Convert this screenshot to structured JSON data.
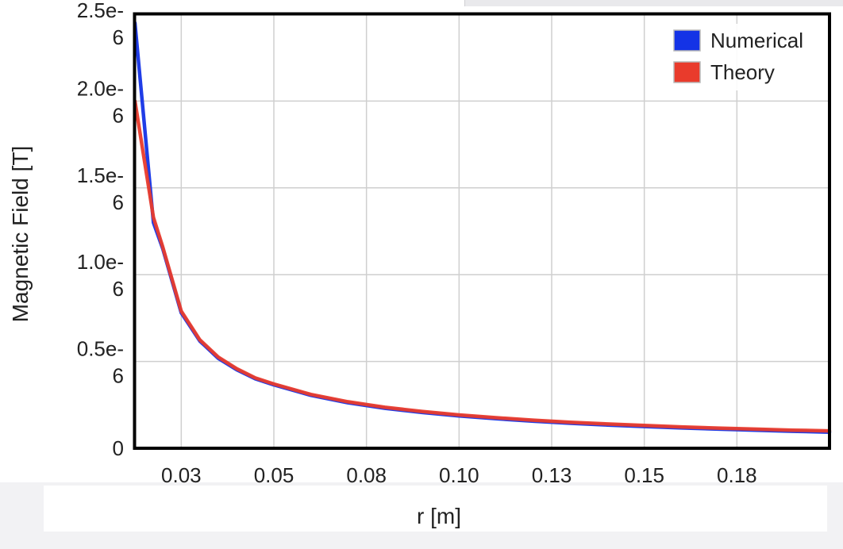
{
  "chart_data": {
    "type": "line",
    "xlabel": "r [m]",
    "ylabel": "Magnetic Field [T]",
    "xlim": [
      0.0125,
      0.2
    ],
    "ylim": [
      0,
      2.5e-06
    ],
    "grid": true,
    "legend": "top-right",
    "x_ticks": [
      {
        "value": 0.025,
        "label": "0.03"
      },
      {
        "value": 0.05,
        "label": "0.05"
      },
      {
        "value": 0.075,
        "label": "0.08"
      },
      {
        "value": 0.1,
        "label": "0.10"
      },
      {
        "value": 0.125,
        "label": "0.13"
      },
      {
        "value": 0.15,
        "label": "0.15"
      },
      {
        "value": 0.175,
        "label": "0.18"
      }
    ],
    "y_ticks": [
      {
        "value": 0,
        "lines": [
          "0"
        ]
      },
      {
        "value": 5e-07,
        "lines": [
          "0.5e-",
          "6"
        ]
      },
      {
        "value": 1e-06,
        "lines": [
          "1.0e-",
          "6"
        ]
      },
      {
        "value": 1.5e-06,
        "lines": [
          "1.5e-",
          "6"
        ]
      },
      {
        "value": 2e-06,
        "lines": [
          "2.0e-",
          "6"
        ]
      },
      {
        "value": 2.5e-06,
        "lines": [
          "2.5e-",
          "6"
        ]
      }
    ],
    "x": [
      0.0125,
      0.0175,
      0.02,
      0.025,
      0.03,
      0.035,
      0.04,
      0.045,
      0.05,
      0.06,
      0.07,
      0.08,
      0.09,
      0.1,
      0.11,
      0.12,
      0.13,
      0.14,
      0.15,
      0.16,
      0.17,
      0.18,
      0.19,
      0.2
    ],
    "series": [
      {
        "name": "Numerical",
        "color": "#1433e6",
        "values": [
          2.45e-06,
          1.3e-06,
          1.15e-06,
          7.8e-07,
          6.18e-07,
          5.18e-07,
          4.52e-07,
          4e-07,
          3.65e-07,
          3.05e-07,
          2.62e-07,
          2.3e-07,
          2.06e-07,
          1.86e-07,
          1.7e-07,
          1.56e-07,
          1.44e-07,
          1.34e-07,
          1.25e-07,
          1.17e-07,
          1.1e-07,
          1.04e-07,
          9.8e-08,
          9.3e-08
        ]
      },
      {
        "name": "Theory",
        "color": "#e93b2c",
        "values": [
          2e-06,
          1.33e-06,
          1.16e-06,
          7.9e-07,
          6.25e-07,
          5.25e-07,
          4.58e-07,
          4.05e-07,
          3.7e-07,
          3.1e-07,
          2.68e-07,
          2.36e-07,
          2.12e-07,
          1.92e-07,
          1.76e-07,
          1.62e-07,
          1.5e-07,
          1.4e-07,
          1.31e-07,
          1.23e-07,
          1.16e-07,
          1.1e-07,
          1.04e-07,
          1e-07
        ]
      }
    ]
  }
}
